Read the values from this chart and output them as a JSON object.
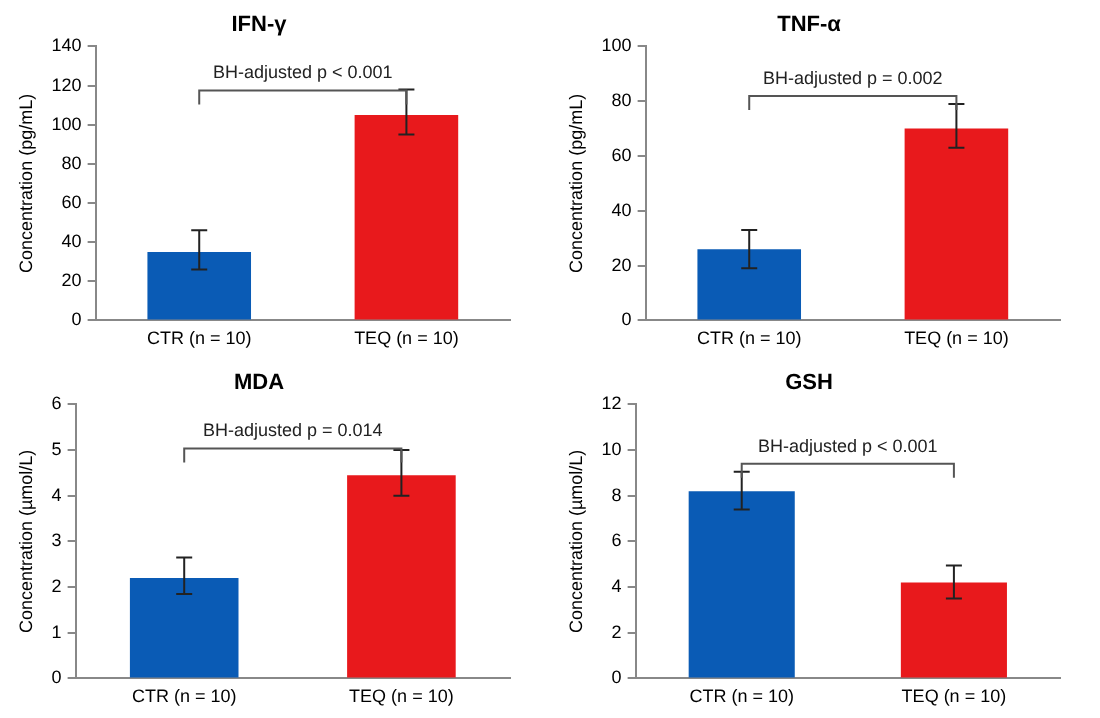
{
  "chart_data": [
    {
      "type": "bar",
      "title": "IFN-γ",
      "ylabel": "Concentration (pg/mL)",
      "categories": [
        "CTR (n = 10)",
        "TEQ (n = 10)"
      ],
      "values": [
        35,
        105
      ],
      "colors": [
        "#0a5bb5",
        "#e8191c"
      ],
      "errors": [
        [
          26,
          46
        ],
        [
          95,
          118
        ]
      ],
      "ylim": [
        0,
        140
      ],
      "yticks": [
        0,
        20,
        40,
        60,
        80,
        100,
        120,
        140
      ],
      "grid": false,
      "annotations": [
        "BH-adjusted p < 0.001"
      ]
    },
    {
      "type": "bar",
      "title": "TNF-α",
      "ylabel": "Concentration (pg/mL)",
      "categories": [
        "CTR (n = 10)",
        "TEQ (n = 10)"
      ],
      "values": [
        26,
        70
      ],
      "colors": [
        "#0a5bb5",
        "#e8191c"
      ],
      "errors": [
        [
          19,
          33
        ],
        [
          63,
          79
        ]
      ],
      "ylim": [
        0,
        100
      ],
      "yticks": [
        0,
        20,
        40,
        60,
        80,
        100
      ],
      "grid": false,
      "annotations": [
        "BH-adjusted p = 0.002"
      ]
    },
    {
      "type": "bar",
      "title": "MDA",
      "ylabel": "Concentration (µmol/L)",
      "categories": [
        "CTR (n = 10)",
        "TEQ (n = 10)"
      ],
      "values": [
        2.2,
        4.45
      ],
      "colors": [
        "#0a5bb5",
        "#e8191c"
      ],
      "errors": [
        [
          1.85,
          2.65
        ],
        [
          4.0,
          5.0
        ]
      ],
      "ylim": [
        0,
        6
      ],
      "yticks": [
        0,
        1,
        2,
        3,
        4,
        5,
        6
      ],
      "grid": false,
      "annotations": [
        "BH-adjusted p = 0.014"
      ]
    },
    {
      "type": "bar",
      "title": "GSH",
      "ylabel": "Concentration (µmol/L)",
      "categories": [
        "CTR (n = 10)",
        "TEQ (n = 10)"
      ],
      "values": [
        8.2,
        4.2
      ],
      "colors": [
        "#0a5bb5",
        "#e8191c"
      ],
      "errors": [
        [
          7.4,
          9.05
        ],
        [
          3.5,
          4.95
        ]
      ],
      "ylim": [
        0,
        12
      ],
      "yticks": [
        0,
        2,
        4,
        6,
        8,
        10,
        12
      ],
      "grid": false,
      "annotations": [
        "BH-adjusted p < 0.001"
      ]
    }
  ]
}
